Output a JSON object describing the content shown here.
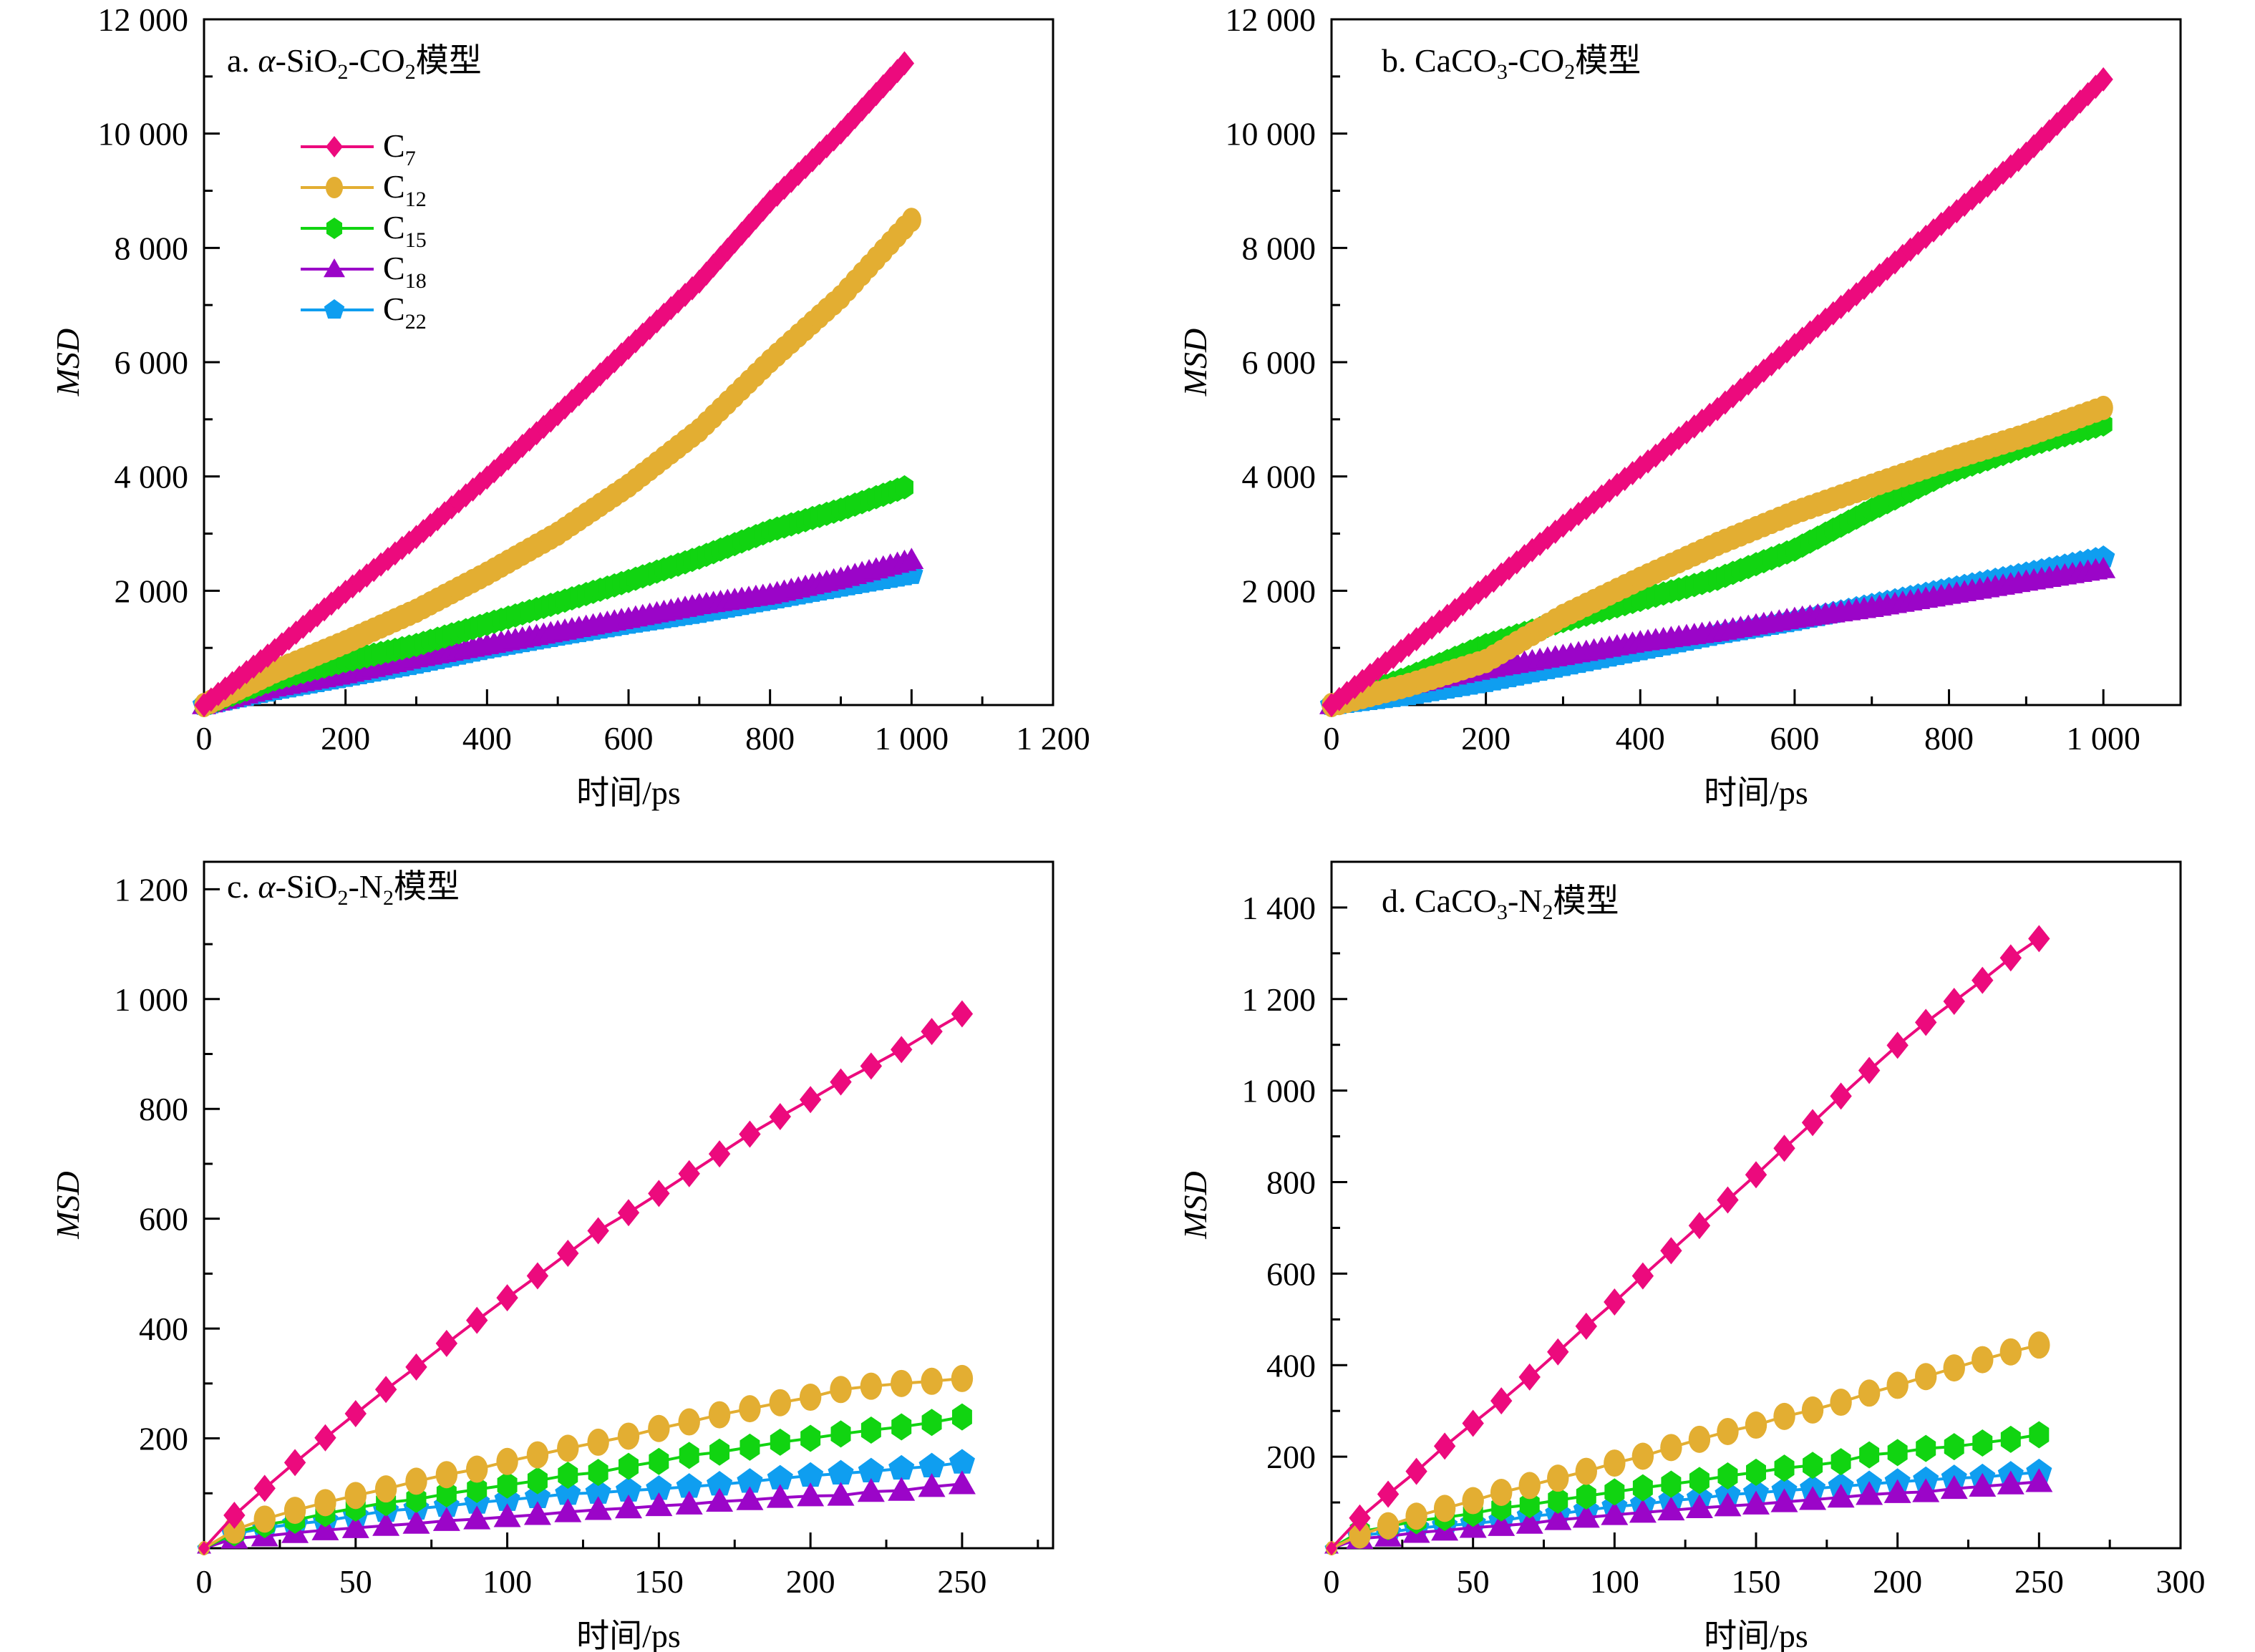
{
  "figure": {
    "series_styles": [
      {
        "name": "C7",
        "base": "C",
        "sub": "7",
        "color": "#EC0A7D",
        "marker": "diamond"
      },
      {
        "name": "C12",
        "base": "C",
        "sub": "12",
        "color": "#E3AE32",
        "marker": "circle"
      },
      {
        "name": "C15",
        "base": "C",
        "sub": "15",
        "color": "#11D411",
        "marker": "hexagon"
      },
      {
        "name": "C18",
        "base": "C",
        "sub": "18",
        "color": "#9B05C8",
        "marker": "triangle"
      },
      {
        "name": "C22",
        "base": "C",
        "sub": "22",
        "color": "#0F9EF0",
        "marker": "pentagon"
      }
    ]
  },
  "chart_data": [
    {
      "id": "a",
      "type": "line",
      "title": "a. α-SiO2-CO2模型",
      "title_parts": [
        {
          "t": "a. "
        },
        {
          "t": "α",
          "italic": true
        },
        {
          "t": "-SiO"
        },
        {
          "t": "2",
          "sub": true
        },
        {
          "t": "-CO"
        },
        {
          "t": "2",
          "sub": true
        },
        {
          "t": "模型"
        }
      ],
      "xlabel": "时间/ps",
      "ylabel": "MSD",
      "xlim": [
        0,
        1200
      ],
      "ylim": [
        0,
        12000
      ],
      "xticks": [
        0,
        200,
        400,
        600,
        800,
        1000,
        1200
      ],
      "xtick_labels": [
        "0",
        "200",
        "400",
        "600",
        "800",
        "1 000",
        "1 200"
      ],
      "xminor": 100,
      "yticks": [
        2000,
        4000,
        6000,
        8000,
        10000,
        12000
      ],
      "ytick_labels": [
        "2 000",
        "4 000",
        "6 000",
        "8 000",
        "10 000",
        "12 000"
      ],
      "yminor": 1000,
      "legend": "upper-left",
      "dense": true,
      "x": [
        0,
        100,
        200,
        300,
        400,
        500,
        600,
        700,
        800,
        900,
        990
      ],
      "series": [
        {
          "name": "C7",
          "values": [
            0,
            960,
            1980,
            2940,
            3980,
            5090,
            6250,
            7410,
            8810,
            10020,
            11230
          ]
        },
        {
          "name": "C12",
          "x": [
            0,
            100,
            200,
            300,
            400,
            500,
            600,
            700,
            800,
            900,
            1000
          ],
          "values": [
            0,
            590,
            1100,
            1650,
            2300,
            3000,
            3840,
            4810,
            6020,
            7140,
            8490
          ]
        },
        {
          "name": "C15",
          "values": [
            0,
            450,
            770,
            1050,
            1420,
            1790,
            2170,
            2580,
            3050,
            3420,
            3810
          ]
        },
        {
          "name": "C18",
          "x": [
            0,
            100,
            200,
            300,
            400,
            500,
            600,
            700,
            800,
            900,
            1000
          ],
          "values": [
            0,
            310,
            540,
            820,
            1050,
            1280,
            1510,
            1750,
            1930,
            2210,
            2540
          ]
        },
        {
          "name": "C22",
          "x": [
            0,
            100,
            200,
            300,
            400,
            500,
            600,
            700,
            800,
            900,
            1000
          ],
          "values": [
            0,
            260,
            490,
            720,
            985,
            1210,
            1420,
            1610,
            1840,
            2070,
            2290
          ]
        }
      ]
    },
    {
      "id": "b",
      "type": "line",
      "title": "b. CaCO3-CO2模型",
      "title_parts": [
        {
          "t": "b. CaCO"
        },
        {
          "t": "3",
          "sub": true
        },
        {
          "t": "-CO"
        },
        {
          "t": "2",
          "sub": true
        },
        {
          "t": "模型"
        }
      ],
      "xlabel": "时间/ps",
      "ylabel": "MSD",
      "xlim": [
        0,
        1100
      ],
      "ylim": [
        0,
        12000
      ],
      "xticks": [
        0,
        200,
        400,
        600,
        800,
        1000
      ],
      "xtick_labels": [
        "0",
        "200",
        "400",
        "600",
        "800",
        "1 000"
      ],
      "xminor": 100,
      "yticks": [
        2000,
        4000,
        6000,
        8000,
        10000,
        12000
      ],
      "ytick_labels": [
        "2 000",
        "4 000",
        "6 000",
        "8 000",
        "10 000",
        "12 000"
      ],
      "yminor": 1000,
      "legend": "none",
      "dense": true,
      "x": [
        0,
        100,
        200,
        300,
        400,
        500,
        600,
        700,
        800,
        900,
        1000
      ],
      "series": [
        {
          "name": "C7",
          "values": [
            0,
            1050,
            2070,
            3140,
            4160,
            5180,
            6300,
            7410,
            8530,
            9650,
            10950
          ]
        },
        {
          "name": "C12",
          "values": [
            0,
            350,
            770,
            1560,
            2210,
            2820,
            3370,
            3840,
            4300,
            4720,
            5200
          ]
        },
        {
          "name": "C15",
          "values": [
            0,
            490,
            1050,
            1470,
            1840,
            2210,
            2720,
            3420,
            4070,
            4530,
            4910
          ]
        },
        {
          "name": "C18",
          "values": [
            0,
            350,
            630,
            860,
            1100,
            1280,
            1510,
            1700,
            1930,
            2160,
            2380
          ]
        },
        {
          "name": "C22",
          "values": [
            0,
            170,
            400,
            680,
            955,
            1235,
            1470,
            1750,
            2030,
            2300,
            2580
          ]
        }
      ]
    },
    {
      "id": "c",
      "type": "line",
      "title": "c. α-SiO2-N2模型",
      "title_parts": [
        {
          "t": "c. "
        },
        {
          "t": "α",
          "italic": true
        },
        {
          "t": "-SiO"
        },
        {
          "t": "2",
          "sub": true
        },
        {
          "t": "-N"
        },
        {
          "t": "2",
          "sub": true
        },
        {
          "t": "模型"
        }
      ],
      "xlabel": "时间/ps",
      "ylabel": "MSD",
      "xlim": [
        0,
        280
      ],
      "ylim": [
        0,
        1250
      ],
      "xticks": [
        0,
        50,
        100,
        150,
        200,
        250
      ],
      "xtick_labels": [
        "0",
        "50",
        "100",
        "150",
        "200",
        "250"
      ],
      "xminor": 25,
      "yticks": [
        200,
        400,
        600,
        800,
        1000,
        1200
      ],
      "ytick_labels": [
        "200",
        "400",
        "600",
        "800",
        "1 000",
        "1 200"
      ],
      "yminor": 100,
      "legend": "none",
      "dense": false,
      "x": [
        0,
        10,
        20,
        30,
        40,
        50,
        60,
        70,
        80,
        90,
        100,
        110,
        120,
        130,
        140,
        150,
        160,
        170,
        180,
        190,
        200,
        210,
        220,
        230,
        240,
        250
      ],
      "series": [
        {
          "name": "C7",
          "values": [
            0,
            60,
            109,
            156,
            201,
            245,
            289,
            330,
            373,
            415,
            456,
            496,
            537,
            578,
            611,
            646,
            682,
            718,
            754,
            786,
            817,
            849,
            878,
            908,
            941,
            973
          ]
        },
        {
          "name": "C12",
          "values": [
            0,
            33,
            53,
            69,
            83,
            96,
            108,
            122,
            134,
            144,
            158,
            170,
            182,
            193,
            204,
            218,
            230,
            243,
            254,
            265,
            275,
            289,
            295,
            300,
            304,
            309
          ]
        },
        {
          "name": "C15",
          "values": [
            0,
            28,
            43,
            51,
            63,
            73,
            83,
            89,
            99,
            107,
            115,
            123,
            133,
            138,
            149,
            158,
            169,
            175,
            184,
            193,
            200,
            208,
            215,
            221,
            229,
            239
          ]
        },
        {
          "name": "C18",
          "values": [
            0,
            18,
            22,
            28,
            33,
            37,
            41,
            45,
            50,
            53,
            57,
            61,
            66,
            70,
            73,
            77,
            80,
            85,
            88,
            92,
            95,
            96,
            103,
            105,
            112,
            117
          ]
        },
        {
          "name": "C22",
          "values": [
            0,
            26,
            37,
            44,
            50,
            59,
            68,
            72,
            77,
            83,
            88,
            93,
            99,
            101,
            105,
            108,
            112,
            116,
            121,
            127,
            132,
            136,
            140,
            145,
            149,
            156
          ]
        }
      ]
    },
    {
      "id": "d",
      "type": "line",
      "title": "d. CaCO3-N2模型",
      "title_parts": [
        {
          "t": "d. CaCO"
        },
        {
          "t": "3",
          "sub": true
        },
        {
          "t": "-N"
        },
        {
          "t": "2",
          "sub": true
        },
        {
          "t": "模型"
        }
      ],
      "xlabel": "时间/ps",
      "ylabel": "MSD",
      "xlim": [
        0,
        300
      ],
      "ylim": [
        0,
        1500
      ],
      "xticks": [
        0,
        50,
        100,
        150,
        200,
        250,
        300
      ],
      "xtick_labels": [
        "0",
        "50",
        "100",
        "150",
        "200",
        "250",
        "300"
      ],
      "xminor": 25,
      "yticks": [
        200,
        400,
        600,
        800,
        1000,
        1200,
        1400
      ],
      "ytick_labels": [
        "200",
        "400",
        "600",
        "800",
        "1 000",
        "1 200",
        "1 400"
      ],
      "yminor": 100,
      "legend": "none",
      "dense": false,
      "x": [
        0,
        10,
        20,
        30,
        40,
        50,
        60,
        70,
        80,
        90,
        100,
        110,
        120,
        130,
        140,
        150,
        160,
        170,
        180,
        190,
        200,
        210,
        220,
        230,
        240,
        250
      ],
      "series": [
        {
          "name": "C7",
          "values": [
            0,
            66,
            118,
            168,
            223,
            273,
            322,
            374,
            429,
            485,
            538,
            595,
            650,
            705,
            761,
            816,
            874,
            930,
            988,
            1044,
            1099,
            1149,
            1195,
            1241,
            1290,
            1332
          ]
        },
        {
          "name": "C12",
          "values": [
            0,
            29,
            49,
            70,
            87,
            104,
            122,
            137,
            153,
            168,
            186,
            201,
            220,
            238,
            255,
            269,
            288,
            302,
            319,
            339,
            356,
            375,
            394,
            412,
            429,
            444
          ]
        },
        {
          "name": "C15",
          "values": [
            0,
            36,
            47,
            60,
            67,
            76,
            88,
            95,
            105,
            114,
            123,
            132,
            140,
            148,
            158,
            166,
            175,
            181,
            189,
            204,
            209,
            218,
            222,
            230,
            238,
            248
          ]
        },
        {
          "name": "C18",
          "values": [
            0,
            21,
            26,
            34,
            39,
            45,
            49,
            54,
            62,
            67,
            73,
            78,
            83,
            88,
            92,
            96,
            101,
            106,
            111,
            117,
            121,
            123,
            130,
            135,
            140,
            145
          ]
        },
        {
          "name": "C22",
          "values": [
            0,
            28,
            34,
            44,
            49,
            54,
            60,
            70,
            75,
            83,
            91,
            96,
            104,
            109,
            117,
            121,
            126,
            130,
            135,
            140,
            145,
            149,
            153,
            155,
            161,
            166
          ]
        }
      ]
    }
  ]
}
